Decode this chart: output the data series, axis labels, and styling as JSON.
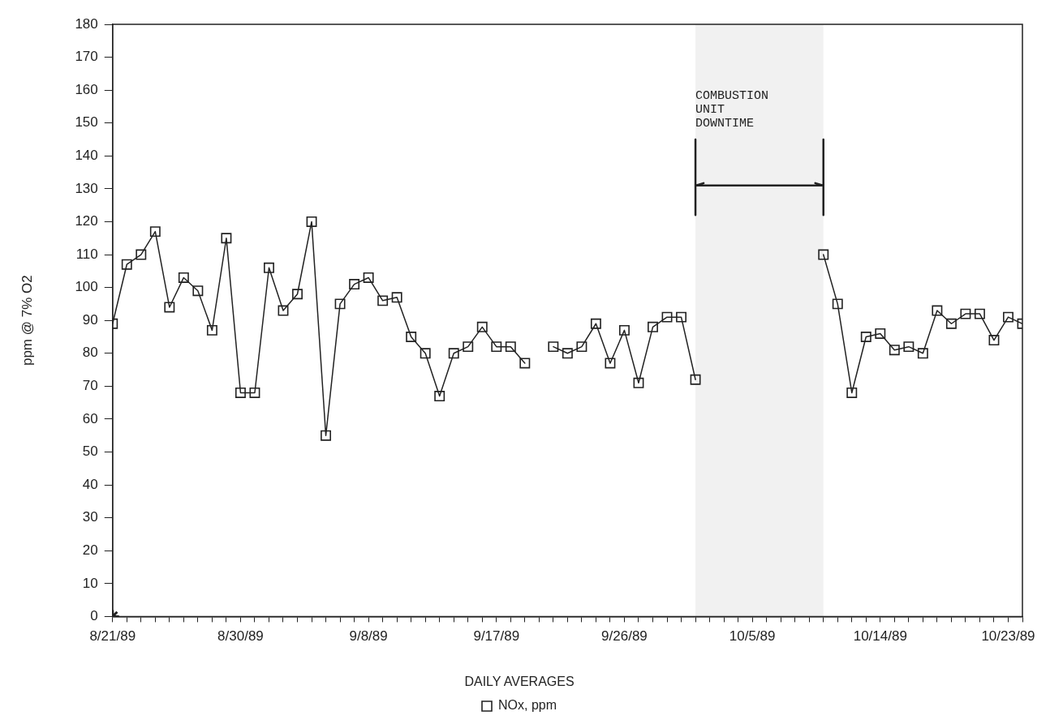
{
  "chart_data": {
    "type": "line",
    "ylabel": "ppm @ 7% O2",
    "legend_title": "DAILY AVERAGES",
    "legend": "bottom",
    "grid": false,
    "marker": "square",
    "line_style": "solid",
    "x": [
      "1989-08-21",
      "1989-08-22",
      "1989-08-23",
      "1989-08-24",
      "1989-08-25",
      "1989-08-26",
      "1989-08-27",
      "1989-08-28",
      "1989-08-29",
      "1989-08-30",
      "1989-08-31",
      "1989-09-01",
      "1989-09-02",
      "1989-09-03",
      "1989-09-04",
      "1989-09-05",
      "1989-09-06",
      "1989-09-07",
      "1989-09-08",
      "1989-09-09",
      "1989-09-10",
      "1989-09-11",
      "1989-09-12",
      "1989-09-13",
      "1989-09-14",
      "1989-09-15",
      "1989-09-16",
      "1989-09-17",
      "1989-09-18",
      "1989-09-19",
      "1989-09-20",
      "1989-09-21",
      "1989-09-22",
      "1989-09-23",
      "1989-09-24",
      "1989-09-25",
      "1989-09-26",
      "1989-09-27",
      "1989-09-28",
      "1989-09-29",
      "1989-09-30",
      "1989-10-01",
      "1989-10-02",
      "1989-10-03",
      "1989-10-04",
      "1989-10-05",
      "1989-10-06",
      "1989-10-07",
      "1989-10-08",
      "1989-10-09",
      "1989-10-10",
      "1989-10-11",
      "1989-10-12",
      "1989-10-13",
      "1989-10-14",
      "1989-10-15",
      "1989-10-16",
      "1989-10-17",
      "1989-10-18",
      "1989-10-19",
      "1989-10-20",
      "1989-10-21",
      "1989-10-22",
      "1989-10-23",
      "1989-10-24"
    ],
    "series": [
      {
        "name": "NOx, ppm",
        "color": "#222222",
        "values": [
          89,
          107,
          110,
          117,
          94,
          103,
          99,
          87,
          115,
          68,
          68,
          106,
          93,
          98,
          120,
          55,
          95,
          101,
          103,
          96,
          97,
          85,
          80,
          67,
          80,
          82,
          88,
          82,
          82,
          77,
          null,
          82,
          80,
          82,
          89,
          77,
          87,
          71,
          88,
          91,
          91,
          72,
          null,
          null,
          null,
          null,
          null,
          null,
          null,
          null,
          110,
          95,
          68,
          85,
          86,
          81,
          82,
          80,
          93,
          89,
          92,
          92,
          84,
          91,
          89
        ]
      },
      {
        "type": "scatter",
        "marker": "cross",
        "color": "#222222",
        "x": [
          "1989-08-21"
        ],
        "values": [
          0
        ]
      }
    ],
    "bands": [
      {
        "axis": "x",
        "from": "1989-10-01",
        "to": "1989-10-10",
        "label": "COMBUSTION UNIT DOWNTIME"
      }
    ],
    "xlim": [
      "1989-08-21",
      "1989-10-24"
    ],
    "xticks": [
      {
        "value": "1989-08-21",
        "label": "8/21/89"
      },
      {
        "value": "1989-08-22",
        "label": null
      },
      {
        "value": "1989-08-23",
        "label": null
      },
      {
        "value": "1989-08-24",
        "label": null
      },
      {
        "value": "1989-08-25",
        "label": null
      },
      {
        "value": "1989-08-26",
        "label": null
      },
      {
        "value": "1989-08-27",
        "label": null
      },
      {
        "value": "1989-08-28",
        "label": null
      },
      {
        "value": "1989-08-29",
        "label": null
      },
      {
        "value": "1989-08-30",
        "label": "8/30/89"
      },
      {
        "value": "1989-08-31",
        "label": null
      },
      {
        "value": "1989-09-01",
        "label": null
      },
      {
        "value": "1989-09-02",
        "label": null
      },
      {
        "value": "1989-09-03",
        "label": null
      },
      {
        "value": "1989-09-04",
        "label": null
      },
      {
        "value": "1989-09-05",
        "label": null
      },
      {
        "value": "1989-09-06",
        "label": null
      },
      {
        "value": "1989-09-07",
        "label": null
      },
      {
        "value": "1989-09-08",
        "label": "9/8/89"
      },
      {
        "value": "1989-09-09",
        "label": null
      },
      {
        "value": "1989-09-10",
        "label": null
      },
      {
        "value": "1989-09-11",
        "label": null
      },
      {
        "value": "1989-09-12",
        "label": null
      },
      {
        "value": "1989-09-13",
        "label": null
      },
      {
        "value": "1989-09-14",
        "label": null
      },
      {
        "value": "1989-09-15",
        "label": null
      },
      {
        "value": "1989-09-16",
        "label": null
      },
      {
        "value": "1989-09-17",
        "label": "9/17/89"
      },
      {
        "value": "1989-09-18",
        "label": null
      },
      {
        "value": "1989-09-19",
        "label": null
      },
      {
        "value": "1989-09-20",
        "label": null
      },
      {
        "value": "1989-09-21",
        "label": null
      },
      {
        "value": "1989-09-22",
        "label": null
      },
      {
        "value": "1989-09-23",
        "label": null
      },
      {
        "value": "1989-09-24",
        "label": null
      },
      {
        "value": "1989-09-25",
        "label": null
      },
      {
        "value": "1989-09-26",
        "label": "9/26/89"
      },
      {
        "value": "1989-09-27",
        "label": null
      },
      {
        "value": "1989-09-28",
        "label": null
      },
      {
        "value": "1989-09-29",
        "label": null
      },
      {
        "value": "1989-09-30",
        "label": null
      },
      {
        "value": "1989-10-01",
        "label": null
      },
      {
        "value": "1989-10-02",
        "label": null
      },
      {
        "value": "1989-10-03",
        "label": null
      },
      {
        "value": "1989-10-04",
        "label": null
      },
      {
        "value": "1989-10-05",
        "label": "10/5/89"
      },
      {
        "value": "1989-10-06",
        "label": null
      },
      {
        "value": "1989-10-07",
        "label": null
      },
      {
        "value": "1989-10-08",
        "label": null
      },
      {
        "value": "1989-10-09",
        "label": null
      },
      {
        "value": "1989-10-10",
        "label": null
      },
      {
        "value": "1989-10-11",
        "label": null
      },
      {
        "value": "1989-10-12",
        "label": null
      },
      {
        "value": "1989-10-13",
        "label": null
      },
      {
        "value": "1989-10-14",
        "label": "10/14/89"
      },
      {
        "value": "1989-10-15",
        "label": null
      },
      {
        "value": "1989-10-16",
        "label": null
      },
      {
        "value": "1989-10-17",
        "label": null
      },
      {
        "value": "1989-10-18",
        "label": null
      },
      {
        "value": "1989-10-19",
        "label": null
      },
      {
        "value": "1989-10-20",
        "label": null
      },
      {
        "value": "1989-10-21",
        "label": null
      },
      {
        "value": "1989-10-22",
        "label": null
      },
      {
        "value": "1989-10-23",
        "label": "10/23/89"
      },
      {
        "value": "1989-10-24",
        "label": null
      }
    ],
    "ylim": [
      0,
      180
    ],
    "yticks": [
      0,
      10,
      20,
      30,
      40,
      50,
      60,
      70,
      80,
      90,
      100,
      110,
      120,
      130,
      140,
      150,
      160,
      170,
      180
    ]
  }
}
